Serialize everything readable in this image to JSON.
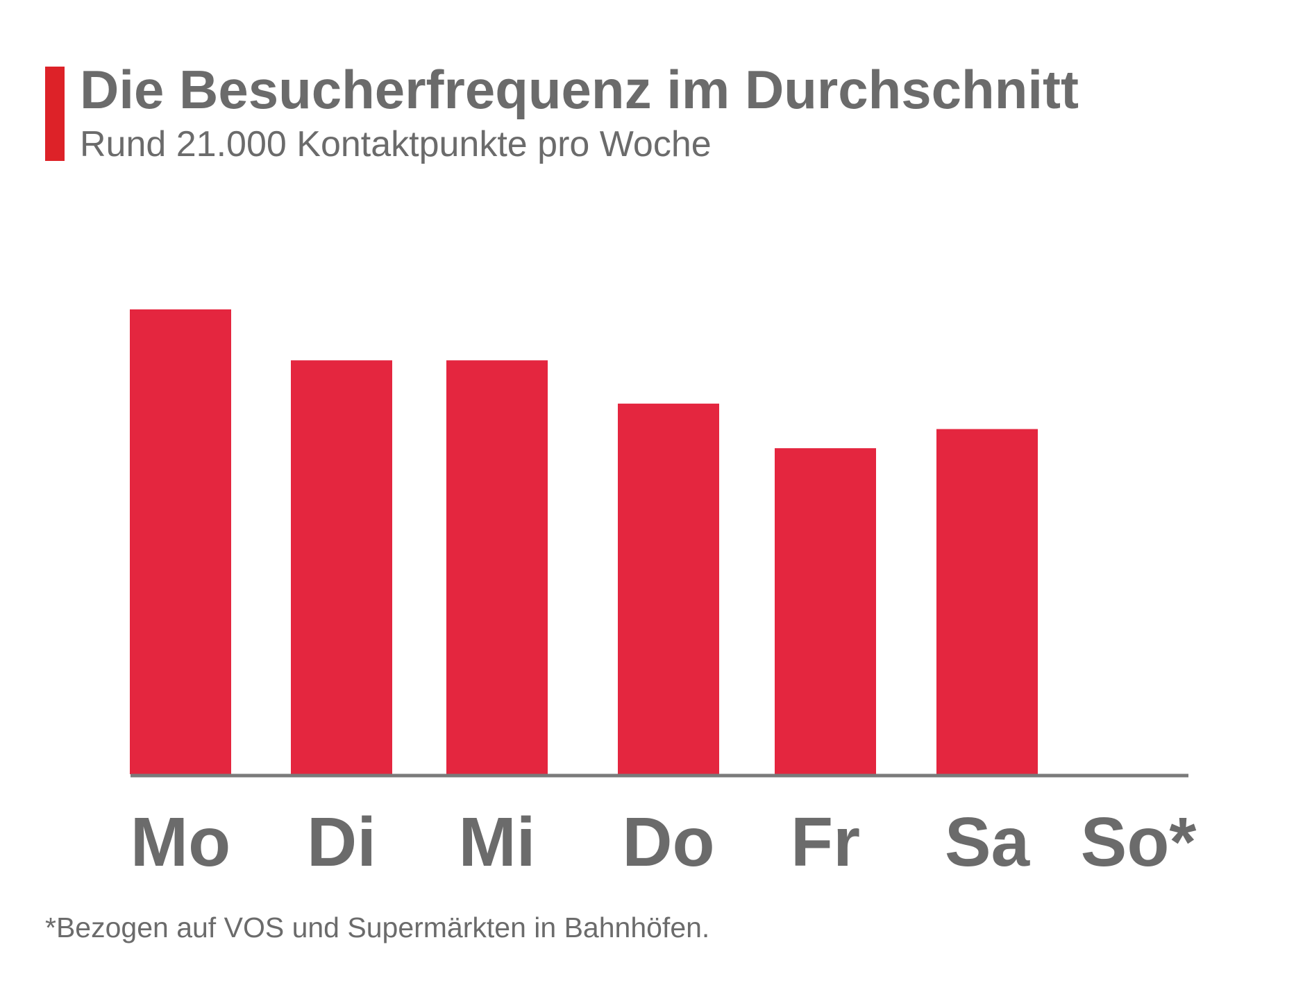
{
  "header": {
    "title": "Die Besucherfrequenz im Durchschnitt",
    "subtitle": "Rund 21.000 Kontaktpunkte pro Woche"
  },
  "footnote": "*Bezogen auf VOS und Supermärkten in Bahnhöfen.",
  "colors": {
    "accent": "#dd2228",
    "bar": "#e4263f",
    "text": "#6b6b6b",
    "baseline": "#7a7a7a"
  },
  "chart_data": {
    "type": "bar",
    "title": "Die Besucherfrequenz im Durchschnitt",
    "subtitle": "Rund 21.000 Kontaktpunkte pro Woche",
    "categories": [
      "Mo",
      "Di",
      "Mi",
      "Do",
      "Fr",
      "Sa",
      "So*"
    ],
    "values": [
      3650,
      3250,
      3250,
      2910,
      2560,
      2710,
      0
    ],
    "xlabel": "",
    "ylabel": "",
    "ylim": [
      0,
      4200
    ],
    "grid": false,
    "y_axis_visible": false,
    "legend": "none"
  }
}
